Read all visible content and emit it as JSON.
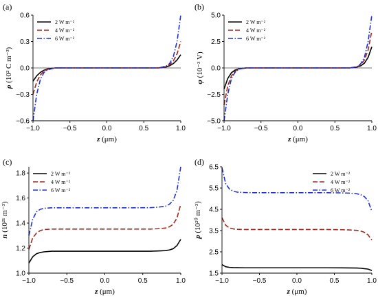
{
  "chart_data": [
    {
      "panel": "(a)",
      "type": "line",
      "xlabel_var": "z",
      "xlabel_unit": " (μm)",
      "ylabel_var": "ρ",
      "ylabel_unit": " (10² C m⁻³)",
      "xlim": [
        -1.0,
        1.0
      ],
      "ylim": [
        -0.6,
        0.6
      ],
      "xticks": [
        -1.0,
        -0.5,
        0.0,
        0.5,
        1.0
      ],
      "xtick_labels": [
        "−1.0",
        "−0.5",
        "0.0",
        "0.5",
        "1.0"
      ],
      "yticks": [
        -0.6,
        -0.3,
        0.0,
        0.3,
        0.6
      ],
      "ytick_labels": [
        "−0.6",
        "−0.3",
        "0.0",
        "0.3",
        "0.6"
      ],
      "zero_line": true,
      "legend_position": "top-left",
      "series": [
        {
          "name": "2 W m⁻²",
          "color": "#000000",
          "dash": "solid",
          "x": [
            -1.0,
            -0.95,
            -0.9,
            -0.85,
            -0.8,
            -0.7,
            -0.6,
            -0.4,
            -0.2,
            0.0,
            0.2,
            0.4,
            0.6,
            0.7,
            0.8,
            0.85,
            0.9,
            0.95,
            1.0
          ],
          "values": [
            -0.15,
            -0.09,
            -0.05,
            -0.025,
            -0.01,
            0.0,
            0.0,
            0.0,
            0.0,
            0.0,
            0.0,
            0.0,
            0.0,
            0.0,
            0.01,
            0.025,
            0.05,
            0.09,
            0.15
          ]
        },
        {
          "name": "4 W m⁻²",
          "color": "#a0281e",
          "dash": "dash",
          "x": [
            -1.0,
            -0.95,
            -0.9,
            -0.85,
            -0.8,
            -0.7,
            -0.6,
            -0.4,
            -0.2,
            0.0,
            0.2,
            0.4,
            0.6,
            0.7,
            0.8,
            0.85,
            0.9,
            0.95,
            1.0
          ],
          "values": [
            -0.3,
            -0.16,
            -0.08,
            -0.035,
            -0.015,
            0.0,
            0.0,
            0.0,
            0.0,
            0.0,
            0.0,
            0.0,
            0.0,
            0.0,
            0.015,
            0.035,
            0.08,
            0.16,
            0.3
          ]
        },
        {
          "name": "6 W m⁻²",
          "color": "#1f2fd0",
          "dash": "dashdot",
          "x": [
            -1.0,
            -0.95,
            -0.9,
            -0.85,
            -0.8,
            -0.7,
            -0.6,
            -0.4,
            -0.2,
            0.0,
            0.2,
            0.4,
            0.6,
            0.7,
            0.8,
            0.85,
            0.9,
            0.95,
            1.0
          ],
          "values": [
            -0.6,
            -0.3,
            -0.13,
            -0.05,
            -0.02,
            0.0,
            0.0,
            0.0,
            0.0,
            0.0,
            0.0,
            0.0,
            0.0,
            0.0,
            0.02,
            0.05,
            0.13,
            0.3,
            0.6
          ]
        }
      ]
    },
    {
      "panel": "(b)",
      "type": "line",
      "xlabel_var": "z",
      "xlabel_unit": " (μm)",
      "ylabel_var": "φ",
      "ylabel_unit": " (10⁻³ V)",
      "xlim": [
        -1.0,
        1.0
      ],
      "ylim": [
        -5.0,
        5.0
      ],
      "xticks": [
        -1.0,
        -0.5,
        0.0,
        0.5,
        1.0
      ],
      "xtick_labels": [
        "−1.0",
        "−0.5",
        "0.0",
        "0.5",
        "1.0"
      ],
      "yticks": [
        -5.0,
        -2.5,
        0.0,
        2.5,
        5.0
      ],
      "ytick_labels": [
        "−5.0",
        "−2.5",
        "0.0",
        "2.5",
        "5.0"
      ],
      "zero_line": true,
      "legend_position": "top-left",
      "series": [
        {
          "name": "2 W m⁻²",
          "color": "#000000",
          "dash": "solid",
          "x": [
            -1.0,
            -0.95,
            -0.9,
            -0.85,
            -0.8,
            -0.7,
            -0.6,
            -0.4,
            -0.2,
            0.0,
            0.2,
            0.4,
            0.6,
            0.7,
            0.8,
            0.85,
            0.9,
            0.95,
            1.0
          ],
          "values": [
            -2.0,
            -1.0,
            -0.45,
            -0.2,
            -0.08,
            0.0,
            0.0,
            0.0,
            0.0,
            0.0,
            0.0,
            0.0,
            0.0,
            0.0,
            0.08,
            0.2,
            0.45,
            1.0,
            2.0
          ]
        },
        {
          "name": "4 W m⁻²",
          "color": "#a0281e",
          "dash": "dash",
          "x": [
            -1.0,
            -0.95,
            -0.9,
            -0.85,
            -0.8,
            -0.7,
            -0.6,
            -0.4,
            -0.2,
            0.0,
            0.2,
            0.4,
            0.6,
            0.7,
            0.8,
            0.85,
            0.9,
            0.95,
            1.0
          ],
          "values": [
            -3.5,
            -1.7,
            -0.75,
            -0.3,
            -0.1,
            0.0,
            0.0,
            0.0,
            0.0,
            0.0,
            0.0,
            0.0,
            0.0,
            0.0,
            0.1,
            0.3,
            0.75,
            1.7,
            3.5
          ]
        },
        {
          "name": "6 W m⁻²",
          "color": "#1f2fd0",
          "dash": "dashdot",
          "x": [
            -1.0,
            -0.95,
            -0.9,
            -0.85,
            -0.8,
            -0.7,
            -0.6,
            -0.4,
            -0.2,
            0.0,
            0.2,
            0.4,
            0.6,
            0.7,
            0.8,
            0.85,
            0.9,
            0.95,
            1.0
          ],
          "values": [
            -5.0,
            -2.5,
            -1.0,
            -0.4,
            -0.12,
            0.0,
            0.0,
            0.0,
            0.0,
            0.0,
            0.0,
            0.0,
            0.0,
            0.0,
            0.12,
            0.4,
            1.0,
            2.5,
            5.0
          ]
        }
      ]
    },
    {
      "panel": "(c)",
      "type": "line",
      "xlabel_var": "z",
      "xlabel_unit": " (μm)",
      "ylabel_var": "n",
      "ylabel_unit": " (10²¹ m⁻³)",
      "xlim": [
        -1.0,
        1.0
      ],
      "ylim": [
        1.0,
        1.85
      ],
      "xticks": [
        -1.0,
        -0.5,
        0.0,
        0.5,
        1.0
      ],
      "xtick_labels": [
        "−1.0",
        "−0.5",
        "0.0",
        "0.5",
        "1.0"
      ],
      "yticks": [
        1.0,
        1.2,
        1.4,
        1.6,
        1.8
      ],
      "ytick_labels": [
        "1.0",
        "1.2",
        "1.4",
        "1.6",
        "1.8"
      ],
      "zero_line": false,
      "legend_position": "top-left",
      "series": [
        {
          "name": "2 W m⁻²",
          "color": "#000000",
          "dash": "solid",
          "x": [
            -1.0,
            -0.95,
            -0.9,
            -0.85,
            -0.8,
            -0.7,
            -0.6,
            -0.4,
            -0.2,
            0.0,
            0.2,
            0.4,
            0.6,
            0.7,
            0.8,
            0.85,
            0.9,
            0.95,
            1.0
          ],
          "values": [
            1.08,
            1.13,
            1.155,
            1.165,
            1.17,
            1.175,
            1.175,
            1.175,
            1.175,
            1.175,
            1.175,
            1.175,
            1.175,
            1.177,
            1.18,
            1.185,
            1.195,
            1.22,
            1.27
          ]
        },
        {
          "name": "4 W m⁻²",
          "color": "#a0281e",
          "dash": "dash",
          "x": [
            -1.0,
            -0.95,
            -0.9,
            -0.85,
            -0.8,
            -0.7,
            -0.6,
            -0.4,
            -0.2,
            0.0,
            0.2,
            0.4,
            0.6,
            0.7,
            0.8,
            0.85,
            0.9,
            0.95,
            1.0
          ],
          "values": [
            1.19,
            1.28,
            1.32,
            1.34,
            1.348,
            1.352,
            1.352,
            1.352,
            1.352,
            1.352,
            1.352,
            1.352,
            1.352,
            1.355,
            1.36,
            1.37,
            1.39,
            1.44,
            1.55
          ]
        },
        {
          "name": "6 W m⁻²",
          "color": "#1f2fd0",
          "dash": "dashdot",
          "x": [
            -1.0,
            -0.95,
            -0.9,
            -0.85,
            -0.8,
            -0.7,
            -0.6,
            -0.4,
            -0.2,
            0.0,
            0.2,
            0.4,
            0.6,
            0.7,
            0.8,
            0.85,
            0.9,
            0.95,
            1.0
          ],
          "values": [
            1.3,
            1.43,
            1.49,
            1.51,
            1.518,
            1.522,
            1.522,
            1.522,
            1.522,
            1.522,
            1.522,
            1.522,
            1.523,
            1.527,
            1.535,
            1.55,
            1.58,
            1.66,
            1.85
          ]
        }
      ]
    },
    {
      "panel": "(d)",
      "type": "line",
      "xlabel_var": "z",
      "xlabel_unit": " (μm)",
      "ylabel_var": "p",
      "ylabel_unit": " (10²⁰ m⁻³)",
      "xlim": [
        -1.0,
        1.0
      ],
      "ylim": [
        1.5,
        6.5
      ],
      "xticks": [
        -1.0,
        -0.5,
        0.0,
        0.5,
        1.0
      ],
      "xtick_labels": [
        "−1.0",
        "−0.5",
        "0.0",
        "0.5",
        "1.0"
      ],
      "yticks": [
        1.5,
        2.5,
        3.5,
        4.5,
        5.5,
        6.5
      ],
      "ytick_labels": [
        "1.5",
        "2.5",
        "3.5",
        "4.5",
        "5.5",
        "6.5"
      ],
      "zero_line": false,
      "legend_position": "top-right",
      "series": [
        {
          "name": "2 W m⁻²",
          "color": "#000000",
          "dash": "solid",
          "x": [
            -1.0,
            -0.95,
            -0.9,
            -0.85,
            -0.8,
            -0.7,
            -0.6,
            -0.4,
            -0.2,
            0.0,
            0.2,
            0.4,
            0.6,
            0.7,
            0.8,
            0.85,
            0.9,
            0.95,
            1.0
          ],
          "values": [
            1.9,
            1.8,
            1.77,
            1.76,
            1.755,
            1.75,
            1.75,
            1.75,
            1.75,
            1.75,
            1.75,
            1.75,
            1.748,
            1.745,
            1.74,
            1.73,
            1.71,
            1.69,
            1.62
          ]
        },
        {
          "name": "4 W m⁻²",
          "color": "#a0281e",
          "dash": "dash",
          "x": [
            -1.0,
            -0.95,
            -0.9,
            -0.85,
            -0.8,
            -0.7,
            -0.6,
            -0.4,
            -0.2,
            0.0,
            0.2,
            0.4,
            0.6,
            0.7,
            0.8,
            0.85,
            0.9,
            0.95,
            1.0
          ],
          "values": [
            4.1,
            3.75,
            3.62,
            3.58,
            3.56,
            3.55,
            3.55,
            3.55,
            3.55,
            3.55,
            3.55,
            3.55,
            3.54,
            3.53,
            3.51,
            3.48,
            3.42,
            3.3,
            3.05
          ]
        },
        {
          "name": "6 W m⁻²",
          "color": "#1f2fd0",
          "dash": "dashdot",
          "x": [
            -1.0,
            -0.95,
            -0.9,
            -0.85,
            -0.8,
            -0.7,
            -0.6,
            -0.4,
            -0.2,
            0.0,
            0.2,
            0.4,
            0.6,
            0.7,
            0.8,
            0.85,
            0.9,
            0.95,
            1.0
          ],
          "values": [
            6.45,
            5.7,
            5.45,
            5.35,
            5.31,
            5.29,
            5.28,
            5.28,
            5.28,
            5.28,
            5.28,
            5.28,
            5.27,
            5.26,
            5.23,
            5.19,
            5.1,
            4.9,
            4.4
          ]
        }
      ]
    }
  ]
}
